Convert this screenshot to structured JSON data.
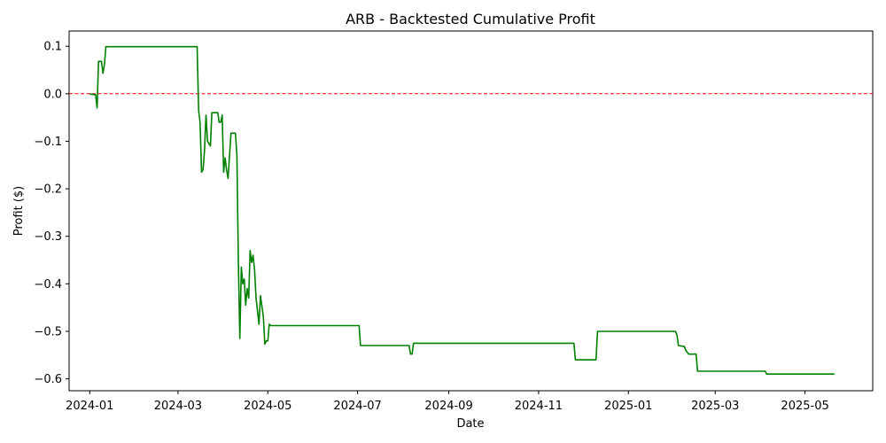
{
  "chart_data": {
    "type": "line",
    "title": "ARB - Backtested Cumulative Profit",
    "xlabel": "Date",
    "ylabel": "Profit ($)",
    "x_axis_type": "date",
    "xlim": [
      "2023-12-18",
      "2025-06-16"
    ],
    "ylim": [
      -0.625,
      0.132
    ],
    "x_ticks": [
      "2024-01",
      "2024-03",
      "2024-05",
      "2024-07",
      "2024-09",
      "2024-11",
      "2025-01",
      "2025-03",
      "2025-05"
    ],
    "x_tick_dates": [
      "2024-01-01",
      "2024-03-01",
      "2024-05-01",
      "2024-07-01",
      "2024-09-01",
      "2024-11-01",
      "2025-01-01",
      "2025-03-01",
      "2025-05-01"
    ],
    "y_ticks": [
      0.1,
      0.0,
      -0.1,
      -0.2,
      -0.3,
      -0.4,
      -0.5,
      -0.6
    ],
    "y_tick_labels": [
      "0.1",
      "0.0",
      "−0.1",
      "−0.2",
      "−0.3",
      "−0.4",
      "−0.5",
      "−0.6"
    ],
    "grid": false,
    "reference_line": {
      "y": 0.0,
      "color": "#ff0000",
      "style": "dashed"
    },
    "series": [
      {
        "color": "#008000",
        "points": [
          [
            "2024-01-01",
            0.0
          ],
          [
            "2024-01-02",
            -0.001
          ],
          [
            "2024-01-05",
            -0.002
          ],
          [
            "2024-01-06",
            -0.03
          ],
          [
            "2024-01-07",
            0.068
          ],
          [
            "2024-01-09",
            0.068
          ],
          [
            "2024-01-10",
            0.043
          ],
          [
            "2024-01-11",
            0.062
          ],
          [
            "2024-01-12",
            0.099
          ],
          [
            "2024-03-14",
            0.099
          ],
          [
            "2024-03-15",
            -0.035
          ],
          [
            "2024-03-16",
            -0.06
          ],
          [
            "2024-03-17",
            -0.165
          ],
          [
            "2024-03-18",
            -0.16
          ],
          [
            "2024-03-19",
            -0.12
          ],
          [
            "2024-03-20",
            -0.045
          ],
          [
            "2024-03-21",
            -0.1
          ],
          [
            "2024-03-22",
            -0.105
          ],
          [
            "2024-03-23",
            -0.11
          ],
          [
            "2024-03-24",
            -0.04
          ],
          [
            "2024-03-28",
            -0.04
          ],
          [
            "2024-03-29",
            -0.06
          ],
          [
            "2024-03-30",
            -0.06
          ],
          [
            "2024-03-31",
            -0.045
          ],
          [
            "2024-04-01",
            -0.165
          ],
          [
            "2024-04-02",
            -0.135
          ],
          [
            "2024-04-03",
            -0.16
          ],
          [
            "2024-04-04",
            -0.178
          ],
          [
            "2024-04-05",
            -0.13
          ],
          [
            "2024-04-06",
            -0.083
          ],
          [
            "2024-04-09",
            -0.083
          ],
          [
            "2024-04-10",
            -0.13
          ],
          [
            "2024-04-11",
            -0.35
          ],
          [
            "2024-04-12",
            -0.515
          ],
          [
            "2024-04-13",
            -0.365
          ],
          [
            "2024-04-14",
            -0.4
          ],
          [
            "2024-04-15",
            -0.39
          ],
          [
            "2024-04-16",
            -0.445
          ],
          [
            "2024-04-17",
            -0.41
          ],
          [
            "2024-04-18",
            -0.43
          ],
          [
            "2024-04-19",
            -0.33
          ],
          [
            "2024-04-20",
            -0.355
          ],
          [
            "2024-04-21",
            -0.34
          ],
          [
            "2024-04-22",
            -0.37
          ],
          [
            "2024-04-23",
            -0.43
          ],
          [
            "2024-04-25",
            -0.485
          ],
          [
            "2024-04-26",
            -0.425
          ],
          [
            "2024-04-28",
            -0.47
          ],
          [
            "2024-04-29",
            -0.527
          ],
          [
            "2024-04-30",
            -0.52
          ],
          [
            "2024-05-01",
            -0.52
          ],
          [
            "2024-05-02",
            -0.485
          ],
          [
            "2024-05-03",
            -0.488
          ],
          [
            "2024-07-02",
            -0.488
          ],
          [
            "2024-07-03",
            -0.53
          ],
          [
            "2024-08-05",
            -0.53
          ],
          [
            "2024-08-06",
            -0.548
          ],
          [
            "2024-08-07",
            -0.548
          ],
          [
            "2024-08-08",
            -0.525
          ],
          [
            "2024-11-25",
            -0.525
          ],
          [
            "2024-11-26",
            -0.56
          ],
          [
            "2024-12-10",
            -0.56
          ],
          [
            "2024-12-11",
            -0.5
          ],
          [
            "2025-02-02",
            -0.5
          ],
          [
            "2025-02-03",
            -0.508
          ],
          [
            "2025-02-04",
            -0.53
          ],
          [
            "2025-02-08",
            -0.532
          ],
          [
            "2025-02-09",
            -0.54
          ],
          [
            "2025-02-11",
            -0.548
          ],
          [
            "2025-02-16",
            -0.548
          ],
          [
            "2025-02-17",
            -0.584
          ],
          [
            "2025-04-04",
            -0.584
          ],
          [
            "2025-04-05",
            -0.59
          ],
          [
            "2025-05-21",
            -0.59
          ]
        ]
      }
    ]
  }
}
